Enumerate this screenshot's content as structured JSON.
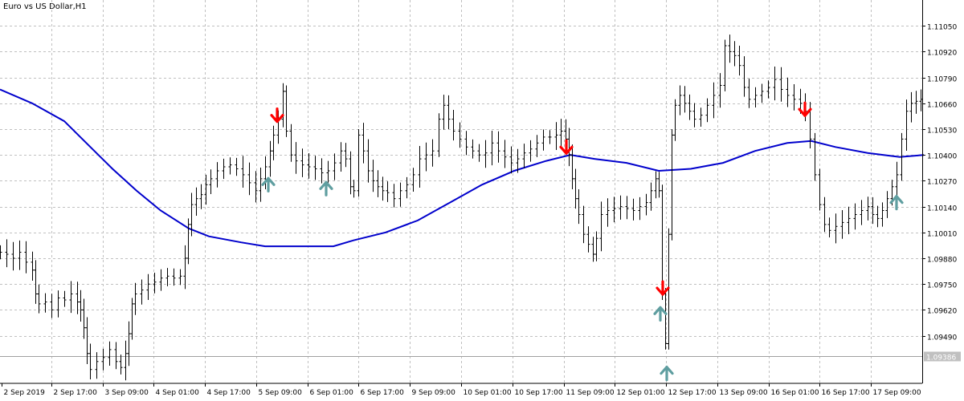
{
  "chart_data": {
    "type": "candlestick-bars",
    "title": "Euro vs US Dollar,H1",
    "symbol": "EURUSD",
    "timeframe": "H1",
    "ylim": [
      1.0925,
      1.1118
    ],
    "y_ticks": [
      "1.11050",
      "1.10920",
      "1.10790",
      "1.10660",
      "1.10530",
      "1.10400",
      "1.10270",
      "1.10140",
      "1.10010",
      "1.09880",
      "1.09750",
      "1.09620",
      "1.09490"
    ],
    "current_price": "1.09386",
    "x_labels": [
      "2 Sep 2019",
      "2 Sep 17:00",
      "3 Sep 09:00",
      "4 Sep 01:00",
      "4 Sep 17:00",
      "5 Sep 09:00",
      "6 Sep 01:00",
      "6 Sep 17:00",
      "9 Sep 09:00",
      "10 Sep 01:00",
      "10 Sep 17:00",
      "11 Sep 09:00",
      "12 Sep 01:00",
      "12 Sep 17:00",
      "13 Sep 09:00",
      "16 Sep 01:00",
      "16 Sep 17:00",
      "17 Sep 09:00"
    ],
    "price_bars": [
      [
        0,
        1.0991
      ],
      [
        8,
        1.099
      ],
      [
        16,
        1.0988
      ],
      [
        24,
        1.0991
      ],
      [
        32,
        1.0986
      ],
      [
        40,
        1.0982
      ],
      [
        44,
        1.097
      ],
      [
        48,
        1.0965
      ],
      [
        56,
        1.0966
      ],
      [
        64,
        1.0962
      ],
      [
        72,
        1.0968
      ],
      [
        80,
        1.0967
      ],
      [
        88,
        1.097
      ],
      [
        96,
        1.0966
      ],
      [
        100,
        1.0962
      ],
      [
        104,
        1.0953
      ],
      [
        108,
        1.094
      ],
      [
        112,
        1.0932
      ],
      [
        120,
        1.0936
      ],
      [
        128,
        1.0938
      ],
      [
        136,
        1.0942
      ],
      [
        144,
        1.0936
      ],
      [
        150,
        1.0933
      ],
      [
        156,
        1.094
      ],
      [
        160,
        1.095
      ],
      [
        164,
        1.0965
      ],
      [
        168,
        1.097
      ],
      [
        176,
        1.0972
      ],
      [
        184,
        1.0975
      ],
      [
        192,
        1.0976
      ],
      [
        200,
        1.0978
      ],
      [
        208,
        1.0979
      ],
      [
        216,
        1.0978
      ],
      [
        224,
        1.0979
      ],
      [
        230,
        1.0988
      ],
      [
        234,
        1.1005
      ],
      [
        238,
        1.1015
      ],
      [
        244,
        1.1018
      ],
      [
        250,
        1.102
      ],
      [
        256,
        1.1025
      ],
      [
        262,
        1.1028
      ],
      [
        270,
        1.1032
      ],
      [
        278,
        1.1034
      ],
      [
        286,
        1.1035
      ],
      [
        294,
        1.1033
      ],
      [
        302,
        1.103
      ],
      [
        310,
        1.1026
      ],
      [
        318,
        1.1022
      ],
      [
        324,
        1.1028
      ],
      [
        330,
        1.1034
      ],
      [
        336,
        1.1042
      ],
      [
        340,
        1.105
      ],
      [
        346,
        1.1058
      ],
      [
        352,
        1.1072
      ],
      [
        356,
        1.1052
      ],
      [
        362,
        1.104
      ],
      [
        368,
        1.1037
      ],
      [
        376,
        1.1035
      ],
      [
        384,
        1.1034
      ],
      [
        392,
        1.1033
      ],
      [
        400,
        1.1031
      ],
      [
        408,
        1.1032
      ],
      [
        416,
        1.1036
      ],
      [
        424,
        1.1042
      ],
      [
        430,
        1.1038
      ],
      [
        436,
        1.1024
      ],
      [
        440,
        1.1022
      ],
      [
        446,
        1.105
      ],
      [
        452,
        1.1042
      ],
      [
        458,
        1.1032
      ],
      [
        464,
        1.1027
      ],
      [
        470,
        1.1024
      ],
      [
        476,
        1.1022
      ],
      [
        482,
        1.1021
      ],
      [
        490,
        1.1018
      ],
      [
        498,
        1.1022
      ],
      [
        506,
        1.1025
      ],
      [
        514,
        1.103
      ],
      [
        522,
        1.1038
      ],
      [
        530,
        1.104
      ],
      [
        538,
        1.1042
      ],
      [
        546,
        1.1058
      ],
      [
        552,
        1.1065
      ],
      [
        558,
        1.1058
      ],
      [
        564,
        1.1052
      ],
      [
        572,
        1.1048
      ],
      [
        580,
        1.1044
      ],
      [
        588,
        1.1042
      ],
      [
        596,
        1.104
      ],
      [
        604,
        1.1041
      ],
      [
        612,
        1.1046
      ],
      [
        620,
        1.1042
      ],
      [
        628,
        1.1039
      ],
      [
        636,
        1.1036
      ],
      [
        644,
        1.1038
      ],
      [
        652,
        1.1041
      ],
      [
        660,
        1.1043
      ],
      [
        668,
        1.1046
      ],
      [
        676,
        1.1049
      ],
      [
        684,
        1.1049
      ],
      [
        692,
        1.105
      ],
      [
        698,
        1.1052
      ],
      [
        704,
        1.1048
      ],
      [
        708,
        1.104
      ],
      [
        712,
        1.1028
      ],
      [
        716,
        1.1018
      ],
      [
        720,
        1.101
      ],
      [
        726,
        1.1
      ],
      [
        732,
        1.0995
      ],
      [
        738,
        1.099
      ],
      [
        742,
        1.0998
      ],
      [
        748,
        1.101
      ],
      [
        756,
        1.1012
      ],
      [
        764,
        1.1013
      ],
      [
        772,
        1.1014
      ],
      [
        780,
        1.1013
      ],
      [
        788,
        1.1012
      ],
      [
        796,
        1.1014
      ],
      [
        804,
        1.1016
      ],
      [
        810,
        1.1022
      ],
      [
        816,
        1.1028
      ],
      [
        820,
        1.1022
      ],
      [
        824,
        1.097
      ],
      [
        828,
        1.0945
      ],
      [
        832,
        1.1
      ],
      [
        836,
        1.105
      ],
      [
        840,
        1.1065
      ],
      [
        846,
        1.107
      ],
      [
        852,
        1.1066
      ],
      [
        858,
        1.1062
      ],
      [
        864,
        1.1058
      ],
      [
        872,
        1.106
      ],
      [
        880,
        1.1065
      ],
      [
        888,
        1.107
      ],
      [
        896,
        1.1075
      ],
      [
        902,
        1.1095
      ],
      [
        908,
        1.1092
      ],
      [
        914,
        1.109
      ],
      [
        920,
        1.1085
      ],
      [
        926,
        1.1074
      ],
      [
        932,
        1.1068
      ],
      [
        940,
        1.107
      ],
      [
        948,
        1.1072
      ],
      [
        956,
        1.1074
      ],
      [
        964,
        1.1078
      ],
      [
        972,
        1.1073
      ],
      [
        980,
        1.107
      ],
      [
        988,
        1.1068
      ],
      [
        996,
        1.1066
      ],
      [
        1002,
        1.1062
      ],
      [
        1008,
        1.1048
      ],
      [
        1014,
        1.103
      ],
      [
        1020,
        1.1015
      ],
      [
        1026,
        1.1005
      ],
      [
        1032,
        1.1002
      ],
      [
        1040,
        1.1004
      ],
      [
        1048,
        1.1006
      ],
      [
        1056,
        1.1008
      ],
      [
        1064,
        1.101
      ],
      [
        1072,
        1.1012
      ],
      [
        1080,
        1.1014
      ],
      [
        1086,
        1.101
      ],
      [
        1092,
        1.1008
      ],
      [
        1098,
        1.1012
      ],
      [
        1104,
        1.1018
      ],
      [
        1110,
        1.1024
      ],
      [
        1116,
        1.103
      ],
      [
        1122,
        1.1048
      ],
      [
        1128,
        1.1062
      ],
      [
        1134,
        1.1066
      ],
      [
        1140,
        1.1067
      ],
      [
        1146,
        1.1068
      ]
    ],
    "moving_average": [
      [
        0,
        1.1073
      ],
      [
        40,
        1.1066
      ],
      [
        80,
        1.1057
      ],
      [
        110,
        1.1045
      ],
      [
        140,
        1.1033
      ],
      [
        170,
        1.1022
      ],
      [
        200,
        1.1012
      ],
      [
        235,
        1.1003
      ],
      [
        260,
        1.0999
      ],
      [
        300,
        1.0996
      ],
      [
        330,
        1.0994
      ],
      [
        360,
        1.0994
      ],
      [
        390,
        1.0994
      ],
      [
        415,
        1.0994
      ],
      [
        440,
        1.0997
      ],
      [
        480,
        1.1001
      ],
      [
        520,
        1.1007
      ],
      [
        560,
        1.1016
      ],
      [
        600,
        1.1025
      ],
      [
        640,
        1.1032
      ],
      [
        680,
        1.1037
      ],
      [
        710,
        1.104
      ],
      [
        740,
        1.1038
      ],
      [
        780,
        1.1036
      ],
      [
        820,
        1.1032
      ],
      [
        860,
        1.1033
      ],
      [
        900,
        1.1036
      ],
      [
        940,
        1.1042
      ],
      [
        980,
        1.1046
      ],
      [
        1010,
        1.1047
      ],
      [
        1040,
        1.1044
      ],
      [
        1080,
        1.1041
      ],
      [
        1120,
        1.1039
      ],
      [
        1150,
        1.104
      ]
    ],
    "buy_signals": [
      [
        334,
        1.1025
      ],
      [
        406,
        1.1023
      ],
      [
        822,
        1.096
      ],
      [
        830,
        1.093
      ],
      [
        1116,
        1.1016
      ]
    ],
    "sell_signals": [
      [
        345,
        1.106
      ],
      [
        705,
        1.1044
      ],
      [
        825,
        1.0973
      ],
      [
        1002,
        1.1063
      ]
    ],
    "colors": {
      "price": "#000000",
      "moving_average": "#0000cc",
      "buy_arrow": "#5f9ea0",
      "sell_arrow": "#ff0000",
      "grid": "#c0c0c0",
      "axis": "#000000",
      "current_price_label_bg": "#c0c0c0",
      "current_price_label_text": "#ffffff"
    },
    "grid": true
  }
}
